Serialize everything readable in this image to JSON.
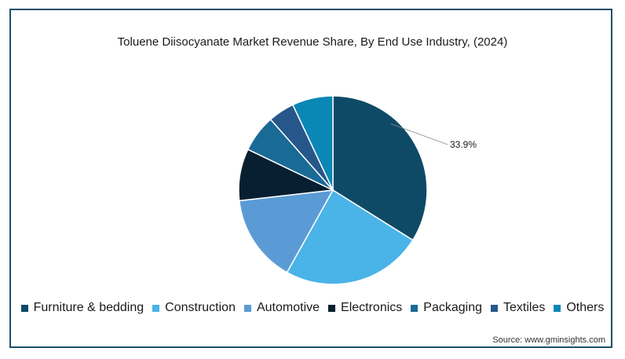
{
  "chart_data": {
    "type": "pie",
    "title": "Toluene Diisocyanate Market Revenue Share, By End Use Industry,  (2024)",
    "categories": [
      "Furniture & bedding",
      "Construction",
      "Automotive",
      "Electronics",
      "Packaging",
      "Textiles",
      "Others"
    ],
    "values": [
      33.9,
      24.2,
      15.1,
      8.9,
      6.4,
      4.5,
      7.0
    ],
    "colors": [
      "#0e4a66",
      "#4ab3e7",
      "#5b9bd5",
      "#071f30",
      "#1a6a96",
      "#27578a",
      "#0b87b5"
    ],
    "data_labels": [
      "33.9%",
      "",
      "",
      "",
      "",
      "",
      ""
    ],
    "start_angle_deg": 0,
    "direction": "clockwise",
    "legend_position": "bottom"
  },
  "source": "Source: www.gminsights.com"
}
